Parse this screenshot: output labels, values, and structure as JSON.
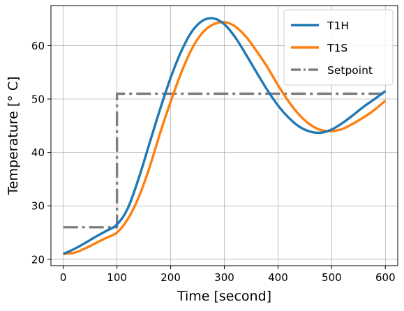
{
  "chart_data": {
    "type": "line",
    "xlabel": "Time [second]",
    "ylabel": "Temperature [° C]",
    "xlim": [
      -23,
      623
    ],
    "ylim": [
      18.8,
      67.5
    ],
    "xticks": [
      0,
      100,
      200,
      300,
      400,
      500,
      600
    ],
    "yticks": [
      20,
      30,
      40,
      50,
      60
    ],
    "grid": true,
    "legend_position": "top-right",
    "series": [
      {
        "name": "T1H",
        "color": "#1f77b4",
        "style": "solid",
        "x": [
          0,
          20,
          40,
          60,
          80,
          100,
          120,
          140,
          160,
          180,
          200,
          220,
          240,
          260,
          280,
          300,
          320,
          340,
          360,
          380,
          400,
          420,
          440,
          460,
          480,
          500,
          520,
          540,
          560,
          580,
          600
        ],
        "y": [
          21.0,
          21.9,
          23.0,
          24.2,
          25.3,
          26.5,
          29.5,
          35.0,
          41.5,
          48.0,
          54.0,
          59.0,
          62.7,
          64.7,
          65.1,
          64.0,
          61.6,
          58.4,
          55.0,
          51.7,
          48.8,
          46.5,
          44.8,
          43.9,
          43.7,
          44.3,
          45.5,
          47.0,
          48.6,
          50.0,
          51.5
        ]
      },
      {
        "name": "T1S",
        "color": "#ff7f0e",
        "style": "solid",
        "x": [
          0,
          20,
          40,
          60,
          80,
          100,
          120,
          140,
          160,
          180,
          200,
          220,
          240,
          260,
          280,
          300,
          320,
          340,
          360,
          380,
          400,
          420,
          440,
          460,
          480,
          500,
          520,
          540,
          560,
          580,
          600
        ],
        "y": [
          21.0,
          21.2,
          22.0,
          23.0,
          24.0,
          25.0,
          27.5,
          31.5,
          37.0,
          43.5,
          49.5,
          55.0,
          59.5,
          62.5,
          64.0,
          64.4,
          63.6,
          61.7,
          59.0,
          56.0,
          52.6,
          49.5,
          47.0,
          45.2,
          44.2,
          44.0,
          44.4,
          45.4,
          46.6,
          48.0,
          49.7
        ]
      },
      {
        "name": "Setpoint",
        "color": "#7f7f7f",
        "style": "dashdot",
        "x": [
          0,
          100,
          100,
          600
        ],
        "y": [
          26.0,
          26.0,
          51.0,
          51.0
        ]
      }
    ]
  }
}
